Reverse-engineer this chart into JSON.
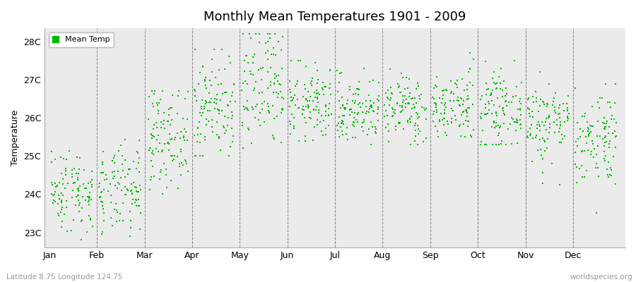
{
  "title": "Monthly Mean Temperatures 1901 - 2009",
  "ylabel": "Temperature",
  "xlabel_bottom_left": "Latitude 8.75 Longitude 124.75",
  "xlabel_bottom_right": "worldspecies.org",
  "ytick_labels": [
    "23C",
    "24C",
    "25C",
    "26C",
    "27C",
    "28C"
  ],
  "ytick_values": [
    23,
    24,
    25,
    26,
    27,
    28
  ],
  "ylim": [
    22.6,
    28.35
  ],
  "months": [
    "Jan",
    "Feb",
    "Mar",
    "Apr",
    "May",
    "Jun",
    "Jul",
    "Aug",
    "Sep",
    "Oct",
    "Nov",
    "Dec"
  ],
  "dot_color": "#00bb00",
  "dot_size": 2.5,
  "background_color": "#ebebeb",
  "legend_label": "Mean Temp",
  "n_years": 109,
  "random_seed": 42,
  "month_means": [
    24.1,
    24.05,
    25.5,
    26.3,
    26.7,
    26.35,
    26.2,
    26.25,
    26.3,
    26.2,
    25.9,
    25.5
  ],
  "month_stds": [
    0.55,
    0.58,
    0.65,
    0.7,
    0.9,
    0.5,
    0.45,
    0.45,
    0.48,
    0.48,
    0.55,
    0.65
  ],
  "month_mins": [
    22.8,
    22.8,
    23.8,
    25.0,
    24.5,
    25.4,
    25.3,
    25.3,
    25.5,
    25.3,
    24.2,
    23.5
  ],
  "month_maxs": [
    25.9,
    25.9,
    26.7,
    27.8,
    28.2,
    27.5,
    27.3,
    27.4,
    27.7,
    27.6,
    27.2,
    26.9
  ],
  "title_fontsize": 13,
  "tick_fontsize": 9,
  "ylabel_fontsize": 9
}
